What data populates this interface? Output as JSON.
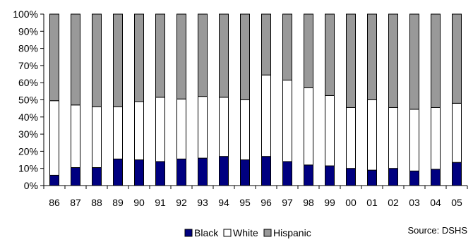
{
  "chart_data": {
    "type": "bar",
    "stacked": true,
    "percent_stacked": true,
    "categories": [
      "86",
      "87",
      "88",
      "89",
      "90",
      "91",
      "92",
      "93",
      "94",
      "95",
      "96",
      "97",
      "98",
      "99",
      "00",
      "01",
      "02",
      "03",
      "04",
      "05"
    ],
    "series": [
      {
        "name": "Black",
        "color": "#000080",
        "values": [
          6,
          10.5,
          10.5,
          15.5,
          15,
          14,
          15.5,
          16,
          17,
          15,
          17,
          14,
          12,
          11.5,
          10,
          9,
          10,
          8.5,
          9.5,
          13.5
        ]
      },
      {
        "name": "White",
        "color": "#ffffff",
        "values": [
          43.5,
          36.5,
          35.5,
          30.5,
          34,
          37.5,
          35,
          36,
          34.5,
          35,
          47.5,
          47.5,
          45,
          41,
          35.5,
          41,
          35.5,
          36,
          36,
          34.5
        ]
      },
      {
        "name": "Hispanic",
        "color": "#999999",
        "values": [
          50.5,
          53,
          54,
          54,
          51,
          48.5,
          49.5,
          48,
          48.5,
          50,
          35.5,
          38.5,
          43,
          47.5,
          54.5,
          50,
          54.5,
          55.5,
          54.5,
          52
        ]
      }
    ],
    "y_ticks": [
      "0%",
      "10%",
      "20%",
      "30%",
      "40%",
      "50%",
      "60%",
      "70%",
      "80%",
      "90%",
      "100%"
    ],
    "ylim": [
      0,
      100
    ],
    "grid": false,
    "legend_position": "bottom",
    "source_note": "Source: DSHS"
  }
}
